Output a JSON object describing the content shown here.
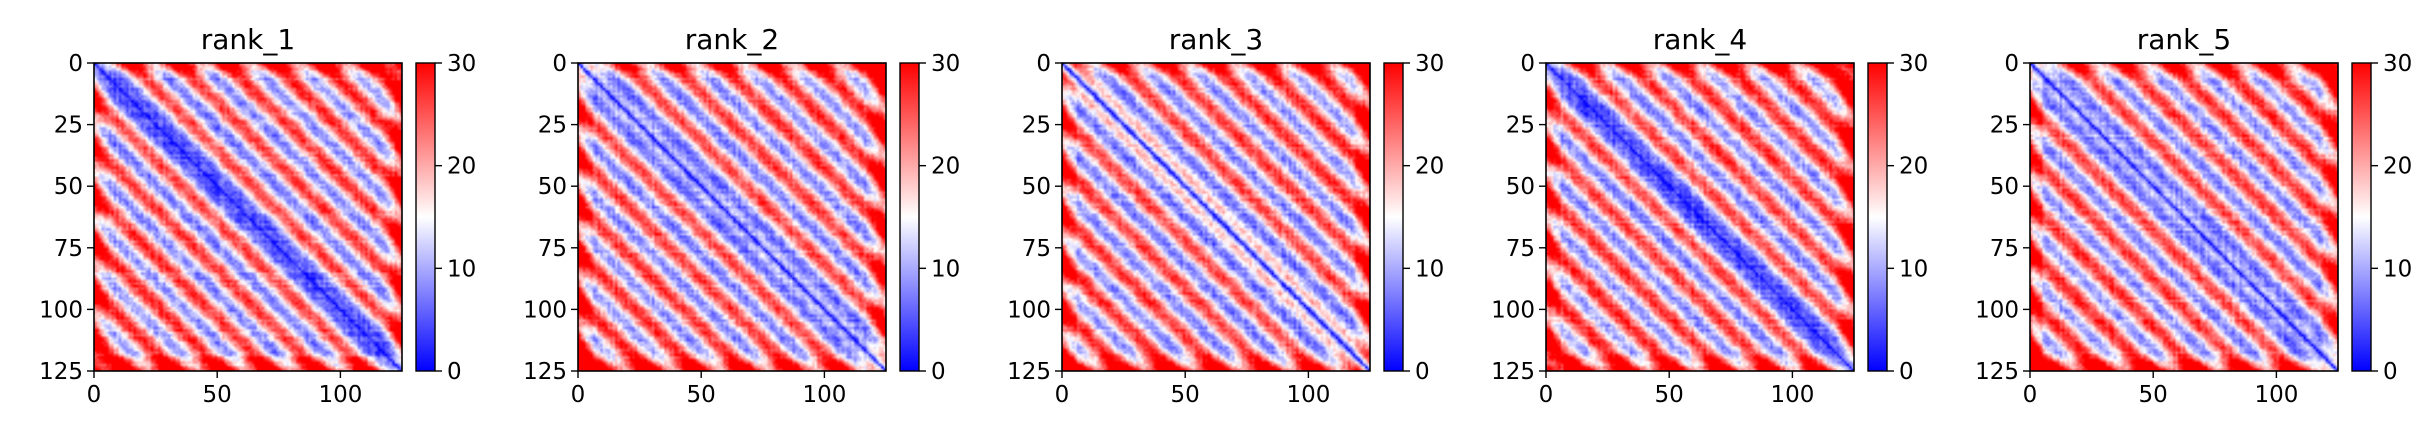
{
  "chart_data": [
    {
      "type": "heatmap",
      "title": "rank_1",
      "x_ticks": [
        0,
        50,
        100
      ],
      "y_ticks": [
        0,
        25,
        50,
        75,
        100,
        125
      ],
      "xlim": [
        0,
        125
      ],
      "ylim": [
        125,
        0
      ],
      "colorbar": {
        "range": [
          0,
          30
        ],
        "ticks": [
          0,
          10,
          20,
          30
        ],
        "colors": [
          "#0000ff",
          "#ffffff",
          "#ff0000"
        ]
      }
    },
    {
      "type": "heatmap",
      "title": "rank_2",
      "x_ticks": [
        0,
        50,
        100
      ],
      "y_ticks": [
        0,
        25,
        50,
        75,
        100,
        125
      ],
      "xlim": [
        0,
        125
      ],
      "ylim": [
        125,
        0
      ],
      "colorbar": {
        "range": [
          0,
          30
        ],
        "ticks": [
          0,
          10,
          20,
          30
        ],
        "colors": [
          "#0000ff",
          "#ffffff",
          "#ff0000"
        ]
      }
    },
    {
      "type": "heatmap",
      "title": "rank_3",
      "x_ticks": [
        0,
        50,
        100
      ],
      "y_ticks": [
        0,
        25,
        50,
        75,
        100,
        125
      ],
      "xlim": [
        0,
        125
      ],
      "ylim": [
        125,
        0
      ],
      "colorbar": {
        "range": [
          0,
          30
        ],
        "ticks": [
          0,
          10,
          20,
          30
        ],
        "colors": [
          "#0000ff",
          "#ffffff",
          "#ff0000"
        ]
      }
    },
    {
      "type": "heatmap",
      "title": "rank_4",
      "x_ticks": [
        0,
        50,
        100
      ],
      "y_ticks": [
        0,
        25,
        50,
        75,
        100,
        125
      ],
      "xlim": [
        0,
        125
      ],
      "ylim": [
        125,
        0
      ],
      "colorbar": {
        "range": [
          0,
          30
        ],
        "ticks": [
          0,
          10,
          20,
          30
        ],
        "colors": [
          "#0000ff",
          "#ffffff",
          "#ff0000"
        ]
      }
    },
    {
      "type": "heatmap",
      "title": "rank_5",
      "x_ticks": [
        0,
        50,
        100
      ],
      "y_ticks": [
        0,
        25,
        50,
        75,
        100,
        125
      ],
      "xlim": [
        0,
        125
      ],
      "ylim": [
        125,
        0
      ],
      "colorbar": {
        "range": [
          0,
          30
        ],
        "ticks": [
          0,
          10,
          20,
          30
        ],
        "colors": [
          "#0000ff",
          "#ffffff",
          "#ff0000"
        ]
      }
    }
  ]
}
